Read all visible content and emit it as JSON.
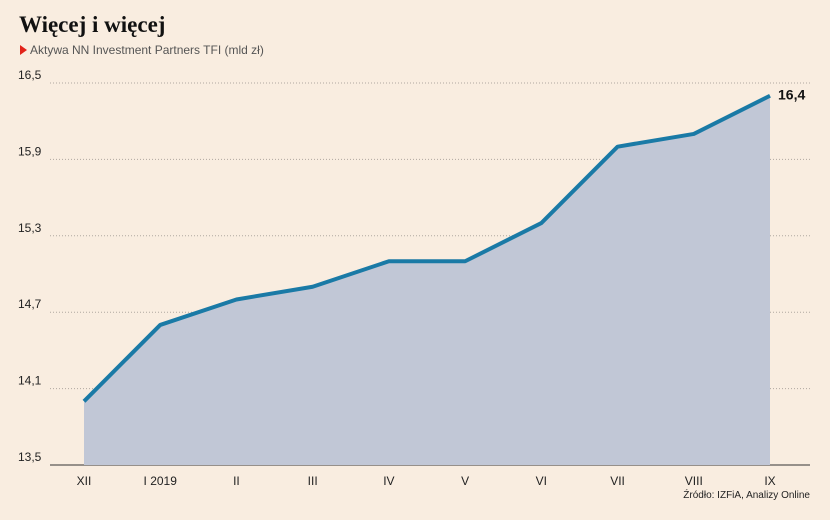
{
  "title": "Więcej i więcej",
  "subtitle": "Aktywa NN Investment Partners TFI (mld zł)",
  "source": "Źródło: IZFiA, Analizy Online",
  "colors": {
    "background": "#f9ede0",
    "line": "#1a7aa6",
    "area": "#c1c7d6",
    "grid": "#b0a8a0",
    "marker": "#e2231a"
  },
  "chart_data": {
    "type": "area",
    "categories": [
      "XII",
      "I 2019",
      "II",
      "III",
      "IV",
      "V",
      "VI",
      "VII",
      "VIII",
      "IX"
    ],
    "series": [
      {
        "values": [
          14.0,
          14.6,
          14.8,
          14.9,
          15.1,
          15.1,
          15.4,
          16.0,
          16.1,
          16.4
        ]
      }
    ],
    "yticks": [
      13.5,
      14.1,
      14.7,
      15.3,
      15.9,
      16.5
    ],
    "ytick_labels": [
      "13,5",
      "14,1",
      "14,7",
      "15,3",
      "15,9",
      "16,5"
    ],
    "ylim": [
      13.5,
      16.5
    ],
    "end_label": "16,4",
    "grid": "horizontal-dotted",
    "legend": "none"
  }
}
